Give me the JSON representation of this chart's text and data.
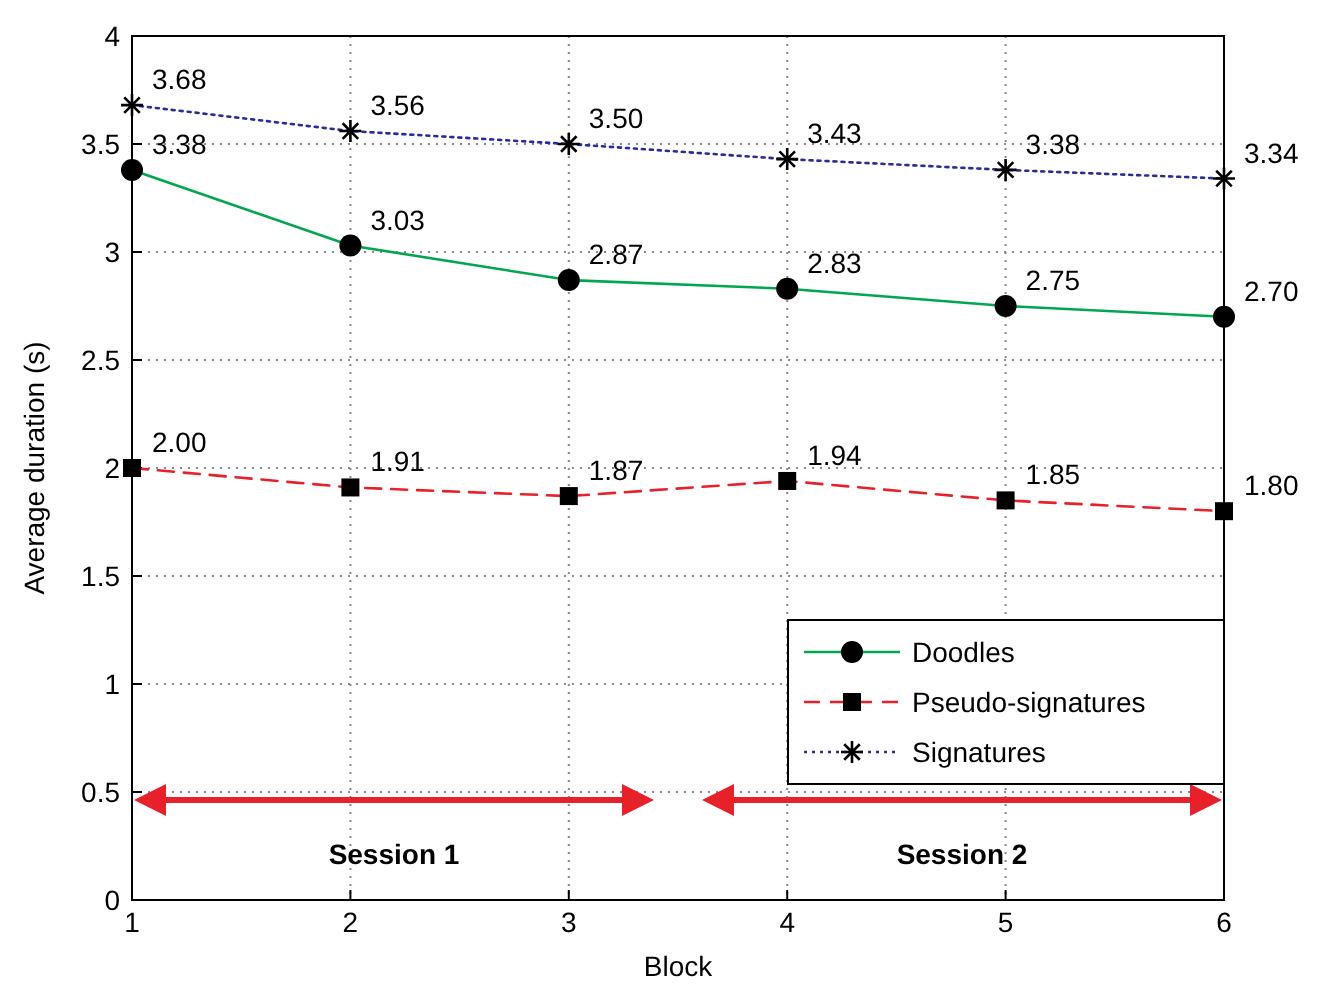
{
  "chart_data": {
    "type": "line",
    "xlabel": "Block",
    "ylabel": "Average duration (s)",
    "x": [
      1,
      2,
      3,
      4,
      5,
      6
    ],
    "xlim": [
      1,
      6
    ],
    "xticks": [
      1,
      2,
      3,
      4,
      5,
      6
    ],
    "ylim": [
      0,
      4
    ],
    "yticks": [
      0,
      0.5,
      1,
      1.5,
      2,
      2.5,
      3,
      3.5,
      4
    ],
    "grid": true,
    "legend": "bottom right",
    "series": [
      {
        "name": "Doodles",
        "color": "#00a650",
        "values": [
          3.38,
          3.03,
          2.87,
          2.83,
          2.75,
          2.7
        ],
        "value_labels": [
          "3.38",
          "3.03",
          "2.87",
          "2.83",
          "2.75",
          "2.70"
        ],
        "marker": "circle",
        "line_style": "solid"
      },
      {
        "name": "Pseudo-signatures",
        "color": "#e8202a",
        "values": [
          2.0,
          1.91,
          1.87,
          1.94,
          1.85,
          1.8
        ],
        "value_labels": [
          "2.00",
          "1.91",
          "1.87",
          "1.94",
          "1.85",
          "1.80"
        ],
        "marker": "square",
        "line_style": "dashed"
      },
      {
        "name": "Signatures",
        "color": "#2b2b9a",
        "values": [
          3.68,
          3.56,
          3.5,
          3.43,
          3.38,
          3.34
        ],
        "value_labels": [
          "3.68",
          "3.56",
          "3.50",
          "3.43",
          "3.38",
          "3.34"
        ],
        "marker": "cross",
        "line_style": "dotted"
      }
    ],
    "annotations": [
      "Session 1",
      "Session 2"
    ]
  }
}
